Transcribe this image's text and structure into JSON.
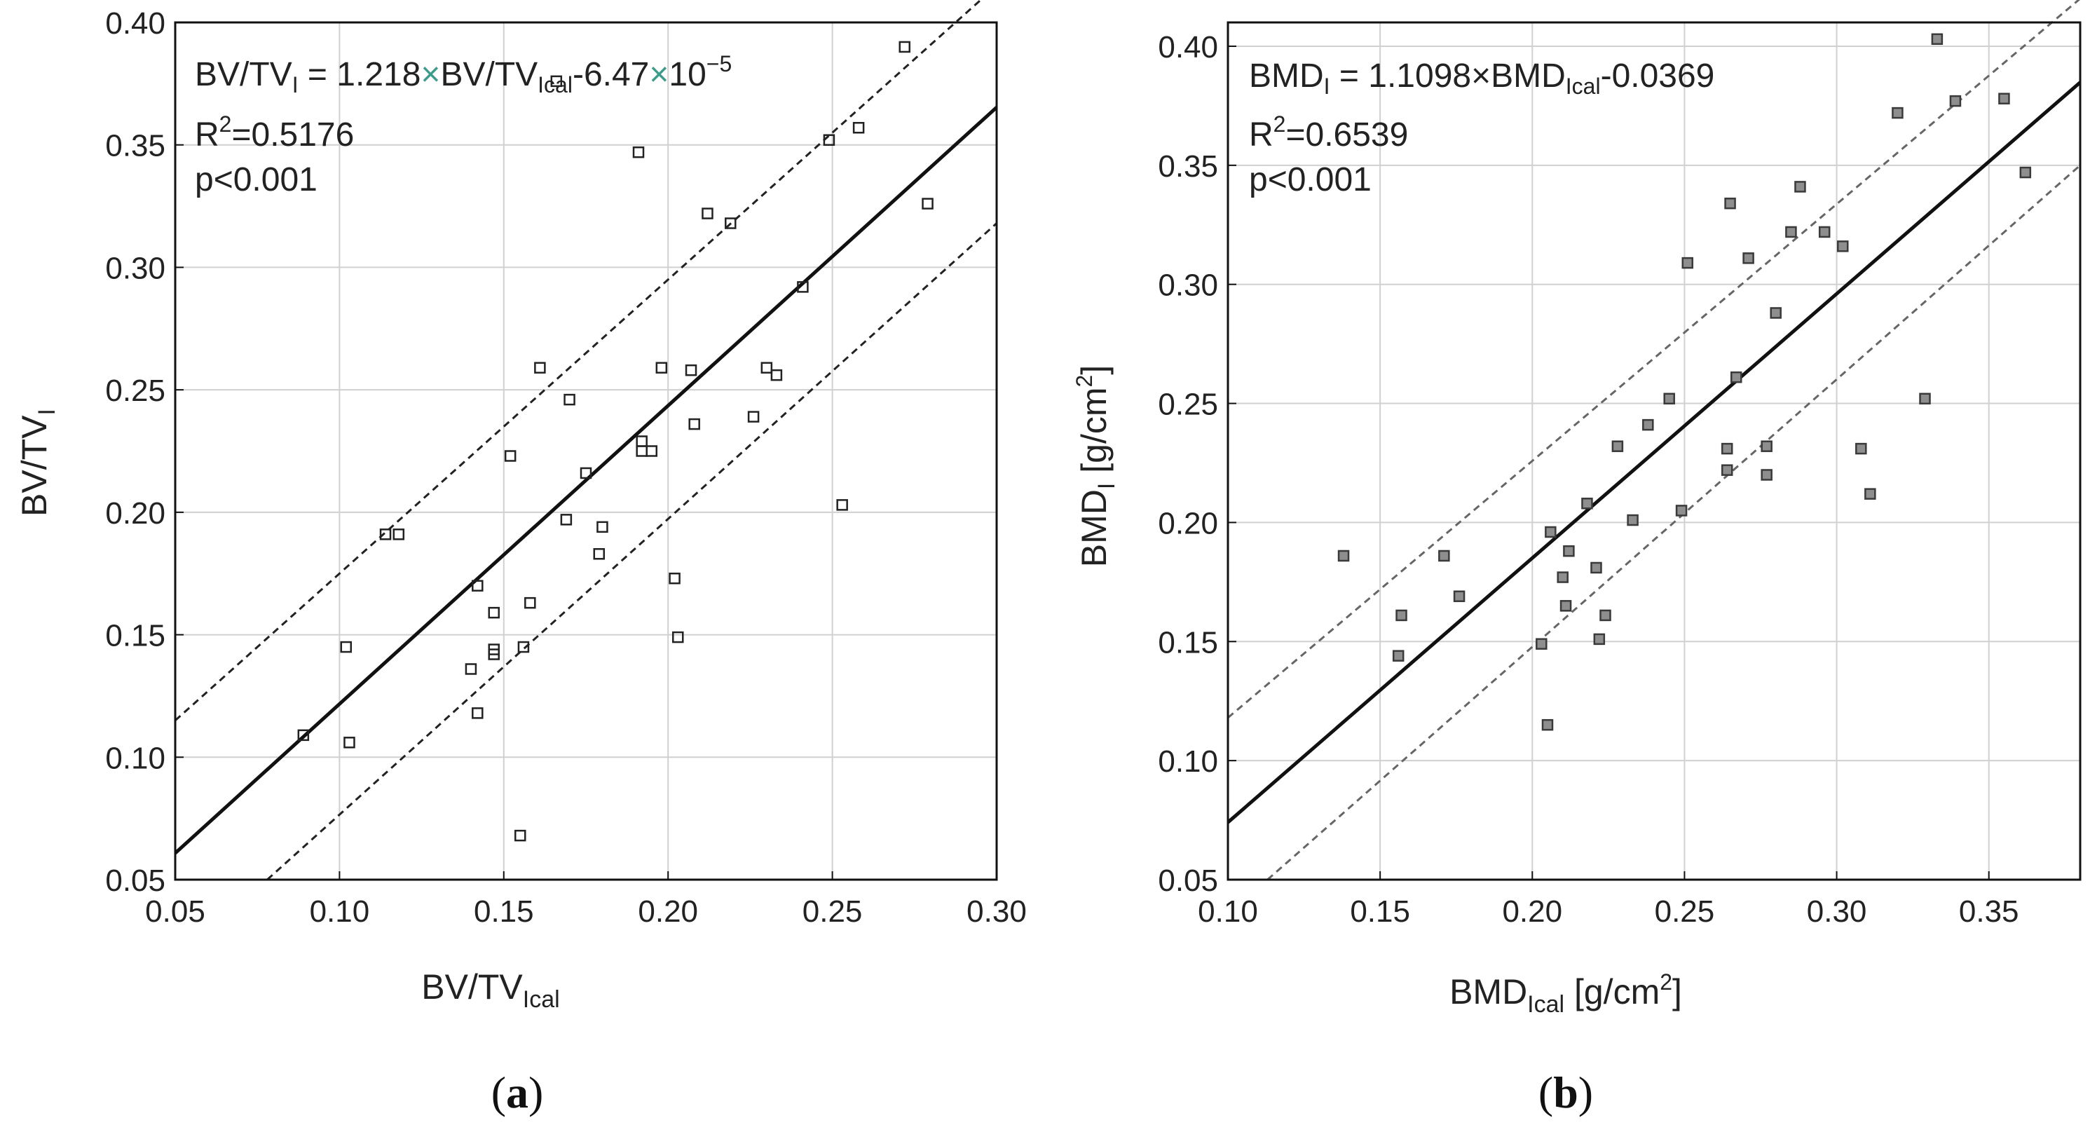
{
  "chart_data": [
    {
      "type": "scatter",
      "panel": "a",
      "caption": {
        "open": "(",
        "letter": "a",
        "close": ")"
      },
      "xlabel": {
        "main": "BV/TV",
        "sub": "Ical"
      },
      "ylabel": {
        "main": "BV/TV",
        "sub": "I"
      },
      "xlim": [
        0.05,
        0.3
      ],
      "ylim": [
        0.05,
        0.4
      ],
      "xticks": [
        "0.05",
        "0.10",
        "0.15",
        "0.20",
        "0.25",
        "0.30"
      ],
      "yticks": [
        "0.05",
        "0.10",
        "0.15",
        "0.20",
        "0.25",
        "0.30",
        "0.35",
        "0.40"
      ],
      "xtick_values": [
        0.05,
        0.1,
        0.15,
        0.2,
        0.25,
        0.3
      ],
      "ytick_values": [
        0.05,
        0.1,
        0.15,
        0.2,
        0.25,
        0.3,
        0.35,
        0.4
      ],
      "annotation": {
        "eq_lhs": "BV/TV",
        "eq_lhs_sub": "I",
        "eq_mid": " = 1.218",
        "times1": "×",
        "eq_term": "BV/TV",
        "eq_term_sub": "Ical",
        "eq_const": "-6.47",
        "times2": "×",
        "eq_pow_base": "10",
        "eq_pow_exp": "−5",
        "r2_label": "R",
        "r2_exp": "2",
        "r2_value": "=0.5176",
        "p_value": "p<0.001"
      },
      "marker": "hollow-square",
      "fit": {
        "slope": 1.218,
        "intercept": -6.47e-05
      },
      "ci_upper": [
        [
          0.05,
          0.115
        ],
        [
          0.3,
          0.415
        ]
      ],
      "ci_lower": [
        [
          0.078,
          0.05
        ],
        [
          0.3,
          0.318
        ]
      ],
      "points": [
        [
          0.089,
          0.109
        ],
        [
          0.102,
          0.145
        ],
        [
          0.103,
          0.106
        ],
        [
          0.114,
          0.191
        ],
        [
          0.118,
          0.191
        ],
        [
          0.14,
          0.136
        ],
        [
          0.142,
          0.17
        ],
        [
          0.142,
          0.118
        ],
        [
          0.147,
          0.159
        ],
        [
          0.147,
          0.144
        ],
        [
          0.147,
          0.142
        ],
        [
          0.152,
          0.223
        ],
        [
          0.155,
          0.068
        ],
        [
          0.156,
          0.145
        ],
        [
          0.158,
          0.163
        ],
        [
          0.161,
          0.259
        ],
        [
          0.166,
          0.376
        ],
        [
          0.169,
          0.197
        ],
        [
          0.17,
          0.246
        ],
        [
          0.175,
          0.216
        ],
        [
          0.179,
          0.183
        ],
        [
          0.18,
          0.194
        ],
        [
          0.191,
          0.347
        ],
        [
          0.192,
          0.229
        ],
        [
          0.192,
          0.225
        ],
        [
          0.195,
          0.225
        ],
        [
          0.198,
          0.259
        ],
        [
          0.202,
          0.173
        ],
        [
          0.203,
          0.149
        ],
        [
          0.207,
          0.258
        ],
        [
          0.208,
          0.236
        ],
        [
          0.212,
          0.322
        ],
        [
          0.219,
          0.318
        ],
        [
          0.226,
          0.239
        ],
        [
          0.23,
          0.259
        ],
        [
          0.233,
          0.256
        ],
        [
          0.241,
          0.292
        ],
        [
          0.249,
          0.352
        ],
        [
          0.253,
          0.203
        ],
        [
          0.258,
          0.357
        ],
        [
          0.272,
          0.39
        ],
        [
          0.279,
          0.326
        ]
      ]
    },
    {
      "type": "scatter",
      "panel": "b",
      "caption": {
        "open": "(",
        "letter": "b",
        "close": ")"
      },
      "xlabel": {
        "main": "BMD",
        "sub": "Ical",
        "unit_pre": " [g/cm",
        "unit_exp": "2",
        "unit_post": "]"
      },
      "ylabel": {
        "main": "BMD",
        "sub": "I",
        "unit_pre": " [g/cm",
        "unit_exp": "2",
        "unit_post": "]"
      },
      "xlim": [
        0.1,
        0.38
      ],
      "ylim": [
        0.05,
        0.41
      ],
      "xticks": [
        "0.10",
        "0.15",
        "0.20",
        "0.25",
        "0.30",
        "0.35"
      ],
      "yticks": [
        "0.05",
        "0.10",
        "0.15",
        "0.20",
        "0.25",
        "0.30",
        "0.35",
        "0.40"
      ],
      "xtick_values": [
        0.1,
        0.15,
        0.2,
        0.25,
        0.3,
        0.35
      ],
      "ytick_values": [
        0.05,
        0.1,
        0.15,
        0.2,
        0.25,
        0.3,
        0.35,
        0.4
      ],
      "annotation": {
        "eq_lhs": "BMD",
        "eq_lhs_sub": "I",
        "eq_mid": " = 1.1098",
        "times1": "×",
        "eq_term": "BMD",
        "eq_term_sub": "Ical",
        "eq_const": "-0.0369",
        "r2_label": "R",
        "r2_exp": "2",
        "r2_value": "=0.6539",
        "p_value": "p<0.001"
      },
      "marker": "filled-gray-square",
      "fit": {
        "slope": 1.1098,
        "intercept": -0.0369
      },
      "ci_upper": [
        [
          0.1,
          0.118
        ],
        [
          0.38,
          0.42
        ]
      ],
      "ci_lower": [
        [
          0.113,
          0.05
        ],
        [
          0.38,
          0.35
        ]
      ],
      "points": [
        [
          0.138,
          0.186
        ],
        [
          0.156,
          0.144
        ],
        [
          0.157,
          0.161
        ],
        [
          0.171,
          0.186
        ],
        [
          0.176,
          0.169
        ],
        [
          0.203,
          0.149
        ],
        [
          0.205,
          0.115
        ],
        [
          0.206,
          0.196
        ],
        [
          0.21,
          0.177
        ],
        [
          0.211,
          0.165
        ],
        [
          0.212,
          0.188
        ],
        [
          0.218,
          0.208
        ],
        [
          0.221,
          0.181
        ],
        [
          0.222,
          0.151
        ],
        [
          0.224,
          0.161
        ],
        [
          0.228,
          0.232
        ],
        [
          0.233,
          0.201
        ],
        [
          0.238,
          0.241
        ],
        [
          0.245,
          0.252
        ],
        [
          0.249,
          0.205
        ],
        [
          0.251,
          0.309
        ],
        [
          0.264,
          0.222
        ],
        [
          0.264,
          0.231
        ],
        [
          0.265,
          0.334
        ],
        [
          0.267,
          0.261
        ],
        [
          0.271,
          0.311
        ],
        [
          0.277,
          0.232
        ],
        [
          0.277,
          0.22
        ],
        [
          0.28,
          0.288
        ],
        [
          0.285,
          0.322
        ],
        [
          0.288,
          0.341
        ],
        [
          0.296,
          0.322
        ],
        [
          0.302,
          0.316
        ],
        [
          0.308,
          0.231
        ],
        [
          0.311,
          0.212
        ],
        [
          0.32,
          0.372
        ],
        [
          0.329,
          0.252
        ],
        [
          0.333,
          0.403
        ],
        [
          0.339,
          0.377
        ],
        [
          0.355,
          0.378
        ],
        [
          0.362,
          0.347
        ]
      ]
    }
  ]
}
